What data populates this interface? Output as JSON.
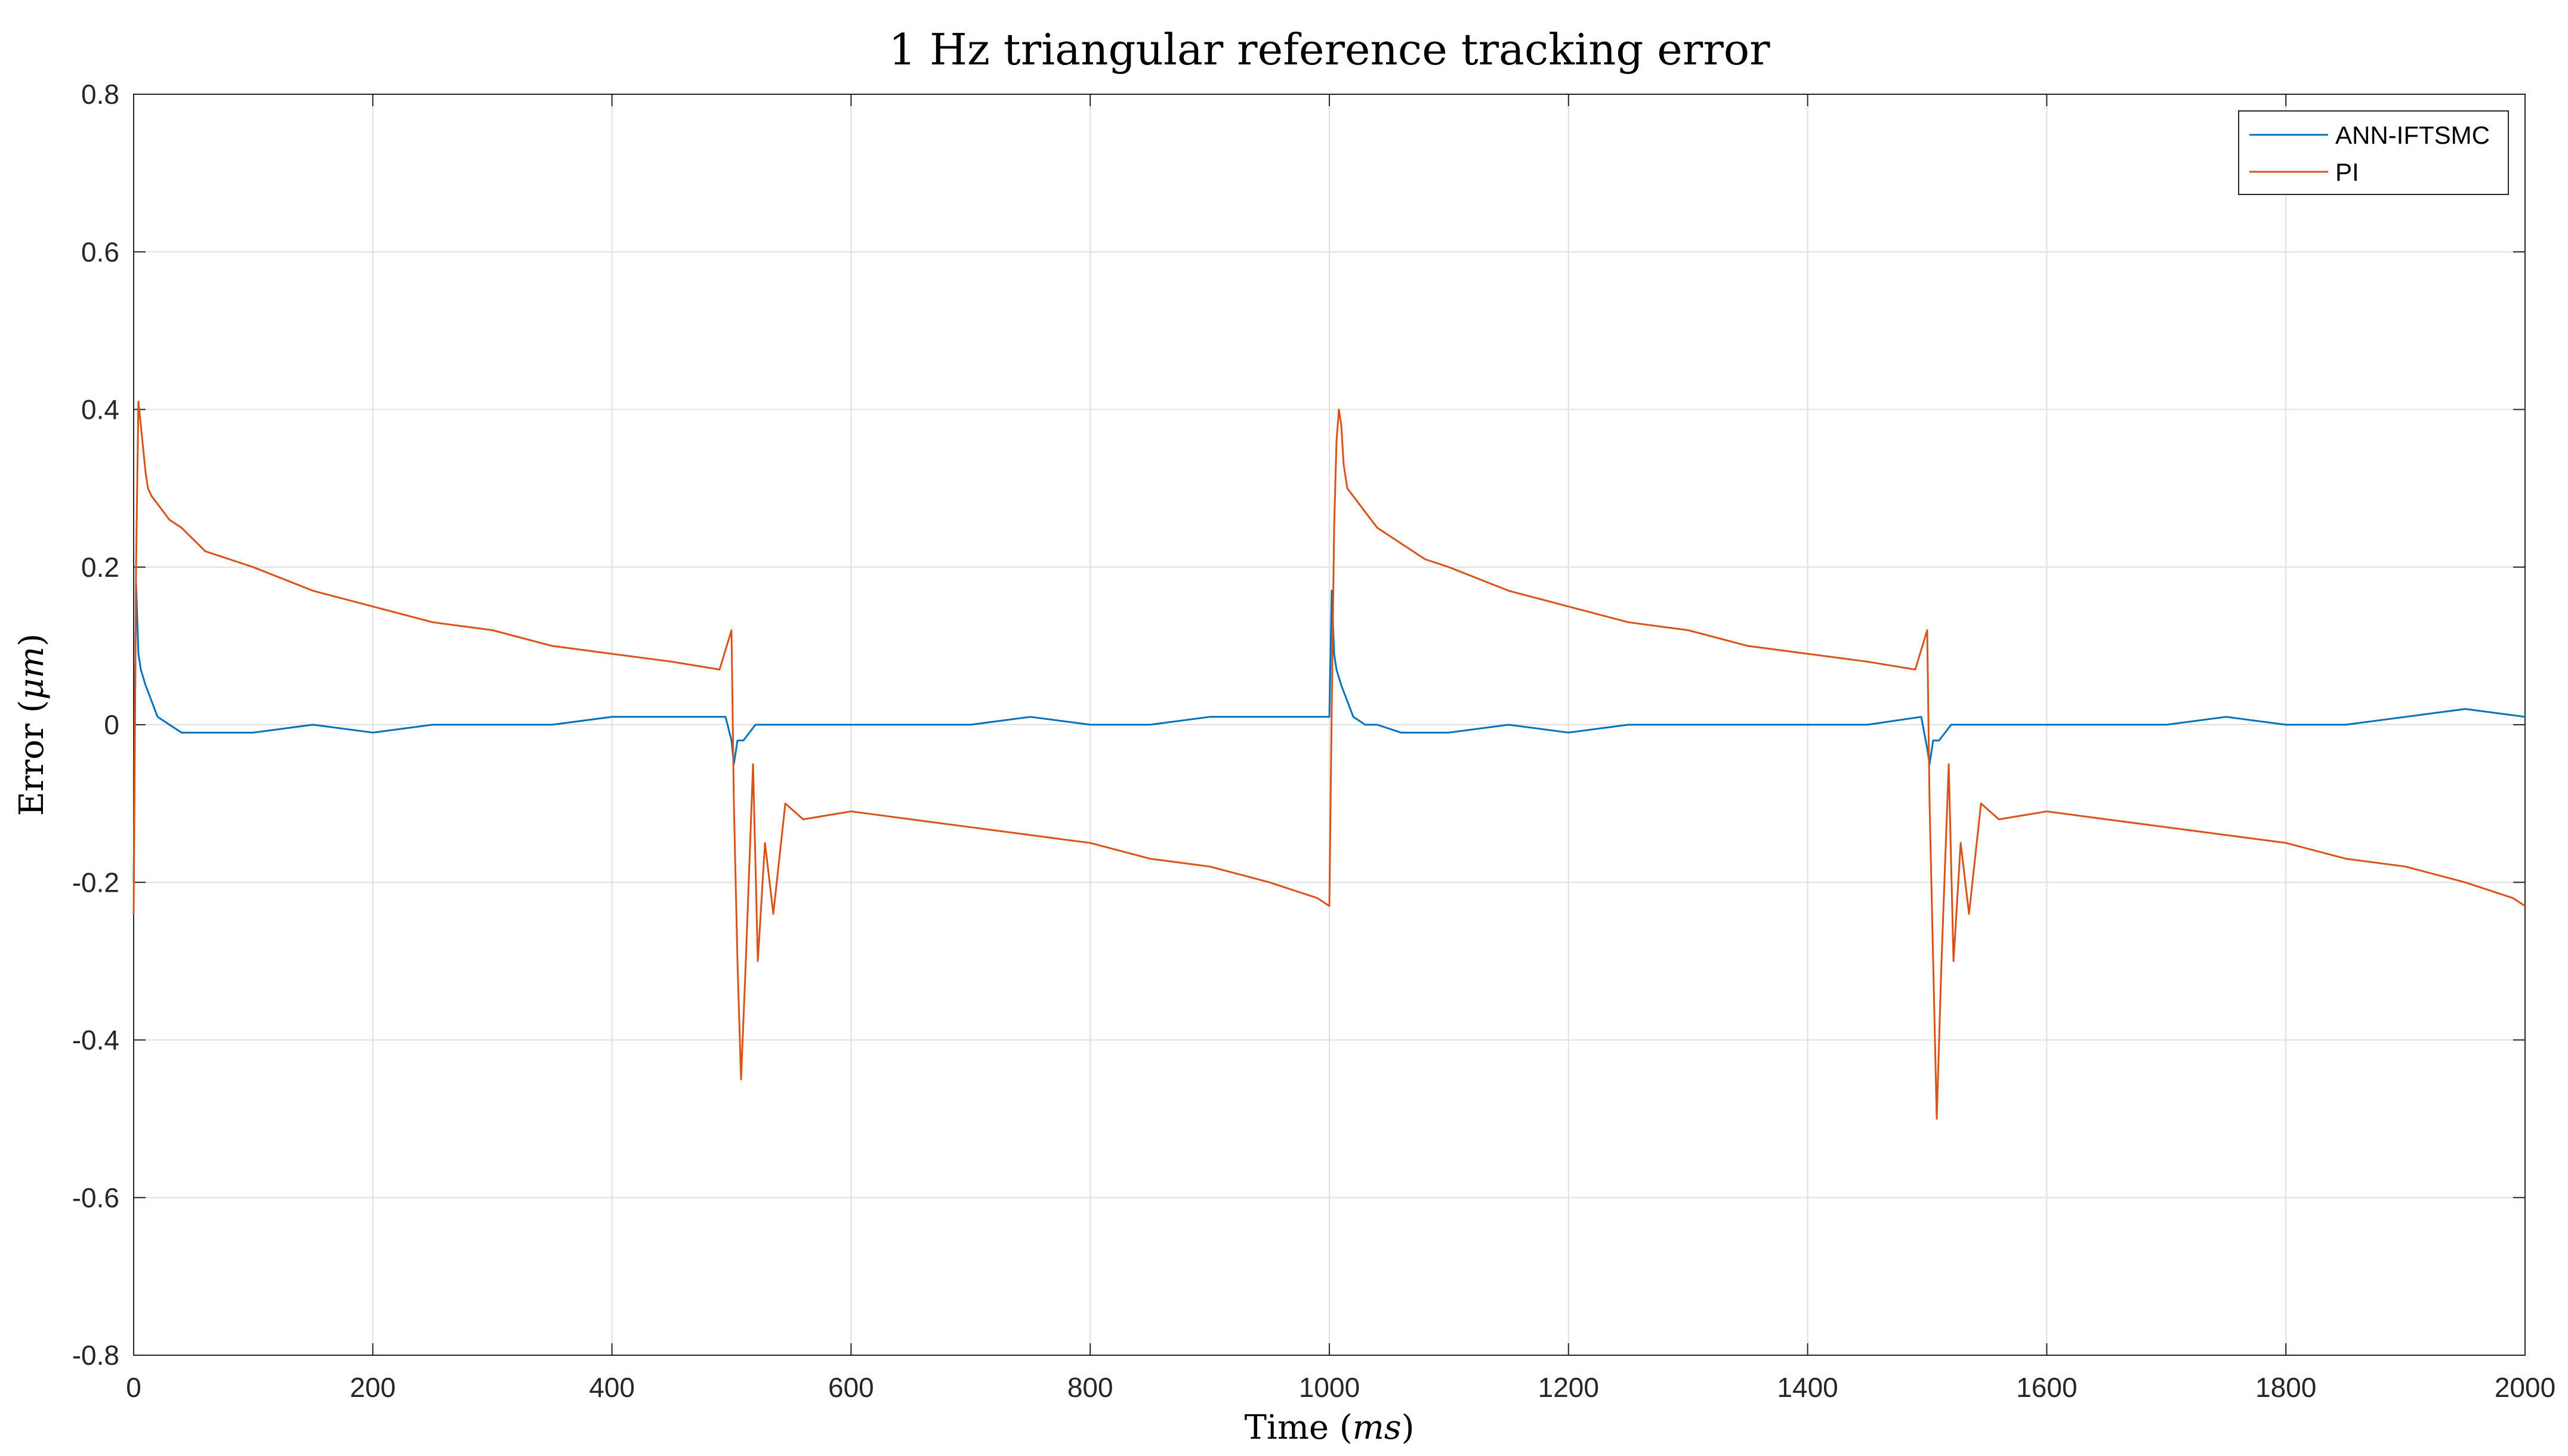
{
  "chart_data": {
    "type": "line",
    "title": "1 Hz triangular reference tracking error",
    "xlabel": {
      "prefix": "Time (",
      "unit": "ms",
      "suffix": ")"
    },
    "ylabel": {
      "prefix": "Error (",
      "unit": "μm",
      "suffix": ")"
    },
    "xlim": [
      0,
      2000
    ],
    "ylim": [
      -0.8,
      0.8
    ],
    "xticks": [
      0,
      200,
      400,
      600,
      800,
      1000,
      1200,
      1400,
      1600,
      1800,
      2000
    ],
    "xtick_labels": [
      "0",
      "200",
      "400",
      "600",
      "800",
      "1000",
      "1200",
      "1400",
      "1600",
      "1800",
      "2000"
    ],
    "yticks": [
      -0.8,
      -0.6,
      -0.4,
      -0.2,
      0,
      0.2,
      0.4,
      0.6,
      0.8
    ],
    "ytick_labels": [
      "-0.8",
      "-0.6",
      "-0.4",
      "-0.2",
      "0",
      "0.2",
      "0.4",
      "0.6",
      "0.8"
    ],
    "grid": true,
    "legend_position": "top-right",
    "series": [
      {
        "name": "ANN-IFTSMC",
        "color": "#0072BD",
        "x": [
          0,
          2,
          4,
          6,
          8,
          10,
          15,
          20,
          30,
          40,
          60,
          100,
          150,
          200,
          250,
          300,
          350,
          400,
          450,
          495,
          500,
          502,
          505,
          510,
          520,
          540,
          560,
          600,
          650,
          700,
          750,
          800,
          850,
          900,
          950,
          1000,
          1002,
          1004,
          1006,
          1008,
          1010,
          1015,
          1020,
          1030,
          1040,
          1060,
          1100,
          1150,
          1200,
          1250,
          1300,
          1350,
          1400,
          1450,
          1495,
          1500,
          1502,
          1505,
          1510,
          1520,
          1540,
          1560,
          1600,
          1650,
          1700,
          1750,
          1800,
          1850,
          1900,
          1950,
          2000
        ],
        "values": [
          -0.2,
          0.18,
          0.09,
          0.07,
          0.06,
          0.05,
          0.03,
          0.01,
          0.0,
          -0.01,
          -0.01,
          -0.01,
          0.0,
          -0.01,
          0.0,
          0.0,
          0.0,
          0.01,
          0.01,
          0.01,
          -0.02,
          -0.05,
          -0.02,
          -0.02,
          0.0,
          0.0,
          0.0,
          0.0,
          0.0,
          0.0,
          0.01,
          0.0,
          0.0,
          0.01,
          0.01,
          0.01,
          0.17,
          0.09,
          0.07,
          0.06,
          0.05,
          0.03,
          0.01,
          0.0,
          0.0,
          -0.01,
          -0.01,
          0.0,
          -0.01,
          0.0,
          0.0,
          0.0,
          0.0,
          0.0,
          0.01,
          -0.03,
          -0.05,
          -0.02,
          -0.02,
          0.0,
          0.0,
          0.0,
          0.0,
          0.0,
          0.0,
          0.01,
          0.0,
          0.0,
          0.01,
          0.02,
          0.01
        ]
      },
      {
        "name": "PI",
        "color": "#D95319",
        "x": [
          0,
          2,
          4,
          6,
          8,
          10,
          12,
          15,
          20,
          30,
          40,
          60,
          80,
          100,
          150,
          200,
          250,
          300,
          350,
          400,
          450,
          490,
          500,
          502,
          505,
          508,
          512,
          518,
          522,
          528,
          535,
          545,
          560,
          600,
          650,
          700,
          750,
          800,
          850,
          900,
          950,
          990,
          1000,
          1002,
          1004,
          1006,
          1008,
          1010,
          1012,
          1015,
          1020,
          1030,
          1040,
          1060,
          1080,
          1100,
          1150,
          1200,
          1250,
          1300,
          1350,
          1400,
          1450,
          1490,
          1500,
          1502,
          1505,
          1508,
          1512,
          1518,
          1522,
          1528,
          1535,
          1545,
          1560,
          1600,
          1650,
          1700,
          1750,
          1800,
          1850,
          1900,
          1950,
          1990,
          2000
        ],
        "values": [
          -0.24,
          0.2,
          0.41,
          0.38,
          0.35,
          0.32,
          0.3,
          0.29,
          0.28,
          0.26,
          0.25,
          0.22,
          0.21,
          0.2,
          0.17,
          0.15,
          0.13,
          0.12,
          0.1,
          0.09,
          0.08,
          0.07,
          0.12,
          -0.1,
          -0.3,
          -0.45,
          -0.3,
          -0.05,
          -0.3,
          -0.15,
          -0.24,
          -0.1,
          -0.12,
          -0.11,
          -0.12,
          -0.13,
          -0.14,
          -0.15,
          -0.17,
          -0.18,
          -0.2,
          -0.22,
          -0.23,
          0.02,
          0.25,
          0.36,
          0.4,
          0.38,
          0.33,
          0.3,
          0.29,
          0.27,
          0.25,
          0.23,
          0.21,
          0.2,
          0.17,
          0.15,
          0.13,
          0.12,
          0.1,
          0.09,
          0.08,
          0.07,
          0.12,
          -0.1,
          -0.3,
          -0.5,
          -0.3,
          -0.05,
          -0.3,
          -0.15,
          -0.24,
          -0.1,
          -0.12,
          -0.11,
          -0.12,
          -0.13,
          -0.14,
          -0.15,
          -0.17,
          -0.18,
          -0.2,
          -0.22,
          -0.23
        ]
      }
    ]
  }
}
